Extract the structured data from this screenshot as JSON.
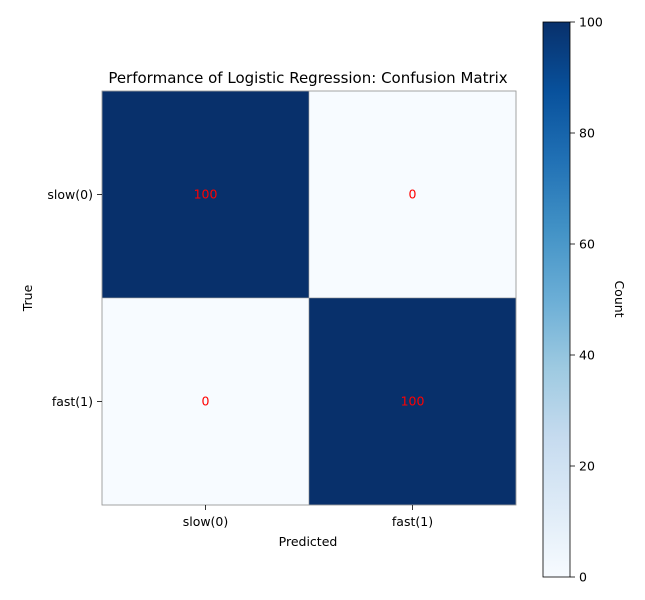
{
  "chart_data": {
    "type": "heatmap",
    "title": "Performance of Logistic Regression: Confusion Matrix",
    "xlabel": "Predicted",
    "ylabel": "True",
    "x_categories": [
      "slow(0)",
      "fast(1)"
    ],
    "y_categories": [
      "slow(0)",
      "fast(1)"
    ],
    "values": [
      [
        100,
        0
      ],
      [
        0,
        100
      ]
    ],
    "colorbar": {
      "label": "Count",
      "min": 0,
      "max": 100,
      "ticks": [
        0,
        20,
        40,
        60,
        80,
        100
      ],
      "colormap": "Blues"
    },
    "colors": {
      "low": "#f7fbff",
      "high": "#08306b",
      "cell_text": "#ff0000"
    }
  }
}
